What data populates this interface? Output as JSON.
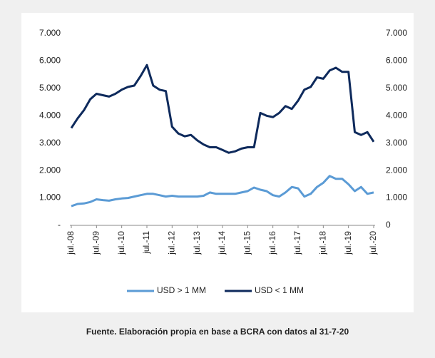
{
  "chart_data": {
    "type": "line",
    "caption": "Fuente. Elaboración propia en base a BCRA con datos al 31-7-20",
    "categories": [
      "jul.-08",
      null,
      null,
      null,
      "jul.-09",
      null,
      null,
      null,
      "jul.-10",
      null,
      null,
      null,
      "jul.-11",
      null,
      null,
      null,
      "jul.-12",
      null,
      null,
      null,
      "jul.-13",
      null,
      null,
      null,
      "jul.-14",
      null,
      null,
      null,
      "jul.-15",
      null,
      null,
      null,
      "jul.-16",
      null,
      null,
      null,
      "jul.-17",
      null,
      null,
      null,
      "jul.-18",
      null,
      null,
      null,
      "jul.-19",
      null,
      null,
      null,
      "jul.-20"
    ],
    "series": [
      {
        "name": "USD > 1 MM",
        "color": "#5b9bd5",
        "values": [
          700,
          780,
          800,
          850,
          950,
          920,
          900,
          950,
          980,
          1000,
          1050,
          1100,
          1150,
          1150,
          1100,
          1050,
          1080,
          1050,
          1050,
          1050,
          1050,
          1080,
          1200,
          1150,
          1150,
          1150,
          1150,
          1200,
          1250,
          1380,
          1300,
          1250,
          1100,
          1050,
          1200,
          1400,
          1350,
          1050,
          1150,
          1400,
          1550,
          1800,
          1700,
          1700,
          1500,
          1250,
          1400,
          1150,
          1200
        ]
      },
      {
        "name": "USD < 1 MM",
        "color": "#0e2a5c",
        "axis": "y2",
        "values": [
          3550,
          3900,
          4200,
          4600,
          4800,
          4750,
          4700,
          4800,
          4950,
          5050,
          5100,
          5450,
          5850,
          5100,
          4950,
          4900,
          3600,
          3350,
          3250,
          3300,
          3100,
          2950,
          2850,
          2850,
          2750,
          2650,
          2700,
          2800,
          2850,
          2850,
          4100,
          4000,
          3950,
          4100,
          4350,
          4250,
          4550,
          4950,
          5050,
          5400,
          5350,
          5650,
          5750,
          5600,
          5600,
          3400,
          3300,
          3400,
          3050
        ]
      }
    ],
    "ylim": [
      0,
      7000
    ],
    "yticks": [
      {
        "value": 0,
        "label": "-"
      },
      {
        "value": 1000,
        "label": "1.000"
      },
      {
        "value": 2000,
        "label": "2.000"
      },
      {
        "value": 3000,
        "label": "3.000"
      },
      {
        "value": 4000,
        "label": "4.000"
      },
      {
        "value": 5000,
        "label": "5.000"
      },
      {
        "value": 6000,
        "label": "6.000"
      },
      {
        "value": 7000,
        "label": "7.000"
      }
    ],
    "y2lim": [
      0,
      7000
    ],
    "y2ticks": [
      0,
      {
        "value": 1000,
        "label": "1.000"
      },
      {
        "value": 2000,
        "label": "2.000"
      },
      {
        "value": 3000,
        "label": "3.000"
      },
      {
        "value": 4000,
        "label": "4.000"
      },
      {
        "value": 5000,
        "label": "5.000"
      },
      {
        "value": 6000,
        "label": "6.000"
      },
      {
        "value": 7000,
        "label": "7.000"
      }
    ],
    "legend": "bottom"
  }
}
